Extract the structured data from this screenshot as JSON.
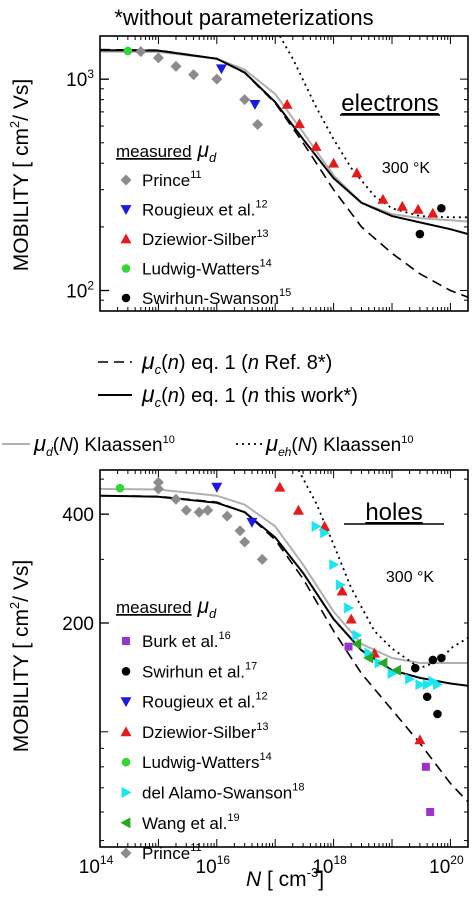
{
  "header": {
    "note": "*without parameterizations"
  },
  "chart_data": [
    {
      "type": "scatter",
      "panel": "electrons",
      "panel_label": "electrons",
      "temperature_label": "300 °K",
      "ylabel_main": "MOBILITY",
      "ylabel_unit_open": "[ cm",
      "ylabel_unit_sup": "2",
      "ylabel_unit_close": "/ Vs]",
      "x_scale": "log",
      "y_scale": "log",
      "xlim": [
        100000000000000.0,
        2e+20
      ],
      "ylim": [
        80,
        1600
      ],
      "y_ticks": [
        100,
        1000
      ],
      "legend_title": "measured",
      "legend_title_symbol": "μ",
      "legend_title_sub": "d",
      "series": [
        {
          "name": "Prince",
          "ref": "11",
          "marker": "diamond",
          "color": "#8c8c8c",
          "points": [
            [
              500000000000000.0,
              1350
            ],
            [
              1000000000000000.0,
              1260
            ],
            [
              2000000000000000.0,
              1150
            ],
            [
              4000000000000000.0,
              1050
            ],
            [
              1e+16,
              1000
            ],
            [
              3e+16,
              800
            ],
            [
              5e+16,
              610
            ]
          ]
        },
        {
          "name": "Rougieux et al.",
          "ref": "12",
          "marker": "triangle-down",
          "color": "#1a1ae6",
          "points": [
            [
              1.2e+16,
              1120
            ],
            [
              4.5e+16,
              760
            ]
          ]
        },
        {
          "name": "Dziewior-Silber",
          "ref": "13",
          "marker": "triangle-up",
          "color": "#e61a1a",
          "points": [
            [
              1.6e+17,
              760
            ],
            [
              2.6e+17,
              615
            ],
            [
              5e+17,
              480
            ],
            [
              1e+18,
              400
            ],
            [
              2.5e+18,
              360
            ],
            [
              7e+18,
              270
            ],
            [
              1.5e+19,
              250
            ],
            [
              2.8e+19,
              242
            ],
            [
              5e+19,
              232
            ]
          ]
        },
        {
          "name": "Ludwig-Watters",
          "ref": "14",
          "marker": "circle",
          "color": "#33d633",
          "points": [
            [
              300000000000000.0,
              1360
            ]
          ]
        },
        {
          "name": "Swirhun-Swanson",
          "ref": "15",
          "marker": "circle",
          "color": "#000000",
          "points": [
            [
              3e+19,
              185
            ],
            [
              7e+19,
              245
            ]
          ]
        }
      ],
      "curves": [
        {
          "label": "dashed",
          "points": [
            [
              100000000000000.0,
              1380
            ],
            [
              1000000000000000.0,
              1370
            ],
            [
              1e+16,
              1250
            ],
            [
              3e+16,
              1070
            ],
            [
              1e+17,
              770
            ],
            [
              3e+17,
              500
            ],
            [
              1e+18,
              300
            ],
            [
              3e+18,
              200
            ],
            [
              1e+19,
              150
            ],
            [
              3e+19,
              120
            ],
            [
              1e+20,
              100
            ],
            [
              2e+20,
              93
            ]
          ]
        },
        {
          "label": "solid",
          "points": [
            [
              100000000000000.0,
              1370
            ],
            [
              1000000000000000.0,
              1365
            ],
            [
              1e+16,
              1250
            ],
            [
              3e+16,
              1075
            ],
            [
              1e+17,
              780
            ],
            [
              3e+17,
              520
            ],
            [
              1e+18,
              340
            ],
            [
              3e+18,
              260
            ],
            [
              1e+19,
              225
            ],
            [
              3e+19,
              210
            ],
            [
              1e+20,
              195
            ],
            [
              2e+20,
              185
            ]
          ]
        },
        {
          "label": "gray",
          "points": [
            [
              100000000000000.0,
              1350
            ],
            [
              1000000000000000.0,
              1345
            ],
            [
              1e+16,
              1250
            ],
            [
              3e+16,
              1110
            ],
            [
              1e+17,
              850
            ],
            [
              3e+17,
              560
            ],
            [
              1e+18,
              350
            ],
            [
              3e+18,
              260
            ],
            [
              1e+19,
              230
            ],
            [
              3e+19,
              220
            ],
            [
              1e+20,
              215
            ],
            [
              2e+20,
              212
            ]
          ]
        },
        {
          "label": "dotted",
          "points": [
            [
              1.2e+17,
              1600
            ],
            [
              2e+17,
              1250
            ],
            [
              5e+17,
              740
            ],
            [
              1e+18,
              520
            ],
            [
              2e+18,
              380
            ],
            [
              5e+18,
              280
            ],
            [
              1e+19,
              245
            ],
            [
              3e+19,
              225
            ],
            [
              1e+20,
              222
            ],
            [
              2e+20,
              222
            ]
          ]
        }
      ]
    },
    {
      "type": "scatter",
      "panel": "holes",
      "panel_label": "holes",
      "temperature_label": "300 °K",
      "ylabel_main": "MOBILITY",
      "ylabel_unit_open": "[ cm",
      "ylabel_unit_sup": "2",
      "ylabel_unit_close": "/ Vs]",
      "x_scale": "log",
      "y_scale": "log",
      "xlim": [
        100000000000000.0,
        2e+20
      ],
      "ylim": [
        48,
        530
      ],
      "x_tick_exponents": [
        "14",
        "16",
        "18",
        "20"
      ],
      "x_tick_base": "10",
      "y_ticks": [
        200,
        400
      ],
      "xlabel_symbol": "N",
      "xlabel_unit_open": " [ cm",
      "xlabel_unit_sup": "-3",
      "xlabel_unit_close": "]",
      "legend_title": "measured",
      "legend_title_symbol": "μ",
      "legend_title_sub": "d",
      "series": [
        {
          "name": "Burk et al.",
          "ref": "16",
          "marker": "square",
          "color": "#9933cc",
          "points": [
            [
              1.8e+18,
              172
            ],
            [
              3.8e+19,
              80
            ],
            [
              4.5e+19,
              60
            ]
          ]
        },
        {
          "name": "Swirhun et al.",
          "ref": "17",
          "marker": "circle",
          "color": "#000000",
          "points": [
            [
              2.5e+19,
              150
            ],
            [
              4e+19,
              125
            ],
            [
              6e+19,
              112
            ],
            [
              5e+19,
              158
            ],
            [
              7e+19,
              160
            ]
          ]
        },
        {
          "name": "Rougieux et al.",
          "ref": "12",
          "marker": "triangle-down",
          "color": "#1a1ae6",
          "points": [
            [
              1e+16,
              475
            ],
            [
              4e+16,
              380
            ]
          ]
        },
        {
          "name": "Dziewior-Silber",
          "ref": "13",
          "marker": "triangle-up",
          "color": "#e61a1a",
          "points": [
            [
              1.2e+17,
              475
            ],
            [
              2.5e+17,
              410
            ],
            [
              7e+17,
              370
            ],
            [
              1.4e+18,
              245
            ],
            [
              2e+18,
              205
            ],
            [
              5e+18,
              165
            ],
            [
              3e+19,
              95
            ]
          ]
        },
        {
          "name": "Ludwig-Watters",
          "ref": "14",
          "marker": "circle",
          "color": "#33d633",
          "points": [
            [
              220000000000000.0,
              472
            ]
          ]
        },
        {
          "name": "del Alamo-Swanson",
          "ref": "18",
          "marker": "triangle-right",
          "color": "#1ae6f0",
          "points": [
            [
              5e+17,
              370
            ],
            [
              7e+17,
              355
            ],
            [
              1e+18,
              290
            ],
            [
              1.3e+18,
              255
            ],
            [
              1.8e+18,
              220
            ],
            [
              2.5e+18,
              185
            ],
            [
              4e+18,
              165
            ],
            [
              6e+18,
              155
            ],
            [
              1e+19,
              145
            ],
            [
              2e+19,
              140
            ],
            [
              3e+19,
              135
            ],
            [
              4e+19,
              135
            ],
            [
              5e+19,
              138
            ],
            [
              6e+19,
              135
            ]
          ]
        },
        {
          "name": "Wang et al.",
          "ref": "19",
          "marker": "triangle-left",
          "color": "#22aa22",
          "points": [
            [
              2.5e+18,
              175
            ],
            [
              4e+18,
              160
            ],
            [
              7e+18,
              155
            ],
            [
              1.2e+19,
              148
            ]
          ]
        },
        {
          "name": "Prince",
          "ref": "11",
          "marker": "diamond",
          "color": "#8c8c8c",
          "points": [
            [
              1000000000000000.0,
              490
            ],
            [
              1000000000000000.0,
              470
            ],
            [
              2000000000000000.0,
              440
            ],
            [
              3000000000000000.0,
              410
            ],
            [
              5000000000000000.0,
              405
            ],
            [
              7000000000000000.0,
              410
            ],
            [
              1.5e+16,
              395
            ],
            [
              2.5e+16,
              360
            ],
            [
              3e+16,
              335
            ],
            [
              6e+16,
              300
            ]
          ]
        }
      ],
      "curves": [
        {
          "label": "dashed",
          "points": [
            [
              100000000000000.0,
              450
            ],
            [
              1000000000000000.0,
              448
            ],
            [
              1e+16,
              432
            ],
            [
              3e+16,
              405
            ],
            [
              1e+17,
              340
            ],
            [
              3e+17,
              265
            ],
            [
              1e+18,
              190
            ],
            [
              3e+18,
              145
            ],
            [
              1e+19,
              115
            ],
            [
              3e+19,
              93
            ],
            [
              1e+20,
              72
            ],
            [
              2e+20,
              64
            ]
          ]
        },
        {
          "label": "solid",
          "points": [
            [
              100000000000000.0,
              450
            ],
            [
              1000000000000000.0,
              447
            ],
            [
              1e+16,
              430
            ],
            [
              3e+16,
              405
            ],
            [
              1e+17,
              345
            ],
            [
              3e+17,
              275
            ],
            [
              1e+18,
              205
            ],
            [
              3e+18,
              168
            ],
            [
              1e+19,
              148
            ],
            [
              3e+19,
              141
            ],
            [
              1e+20,
              136
            ],
            [
              2e+20,
              134
            ]
          ]
        },
        {
          "label": "gray",
          "points": [
            [
              100000000000000.0,
              470
            ],
            [
              1000000000000000.0,
              468
            ],
            [
              1e+16,
              450
            ],
            [
              3e+16,
              425
            ],
            [
              1e+17,
              370
            ],
            [
              3e+17,
              290
            ],
            [
              1e+18,
              215
            ],
            [
              3e+18,
              175
            ],
            [
              1e+19,
              160
            ],
            [
              3e+19,
              155
            ],
            [
              1e+20,
              155
            ],
            [
              2e+20,
              155
            ]
          ]
        },
        {
          "label": "dotted",
          "points": [
            [
              2.5e+17,
              530
            ],
            [
              5e+17,
              430
            ],
            [
              1e+18,
              330
            ],
            [
              2e+18,
              250
            ],
            [
              5e+18,
              190
            ],
            [
              1e+19,
              170
            ],
            [
              3e+19,
              150
            ],
            [
              7e+19,
              158
            ],
            [
              1e+20,
              170
            ],
            [
              2e+20,
              182
            ]
          ]
        }
      ]
    }
  ],
  "curve_legend": [
    {
      "style": "dashed",
      "symbol": "μ",
      "sub": "c",
      "arg_open": "(",
      "arg": "n",
      "arg_close": ")",
      "text": " eq. 1 (",
      "arg2": "n",
      "text2": " Ref. 8*)"
    },
    {
      "style": "solid",
      "symbol": "μ",
      "sub": "c",
      "arg_open": "(",
      "arg": "n",
      "arg_close": ")",
      "text": " eq. 1 (",
      "arg2": "n",
      "text2": " this work*)"
    }
  ],
  "curve_legend_row": [
    {
      "style": "gray",
      "symbol": "μ",
      "sub": "d",
      "arg_open": "(",
      "arg": "N",
      "arg_close": ")",
      "text": " Klaassen",
      "ref": "10"
    },
    {
      "style": "dotted",
      "symbol": "μ",
      "sub": "eh",
      "arg_open": "(",
      "arg": "N",
      "arg_close": ")",
      "text": " Klaassen",
      "ref": "10"
    }
  ]
}
